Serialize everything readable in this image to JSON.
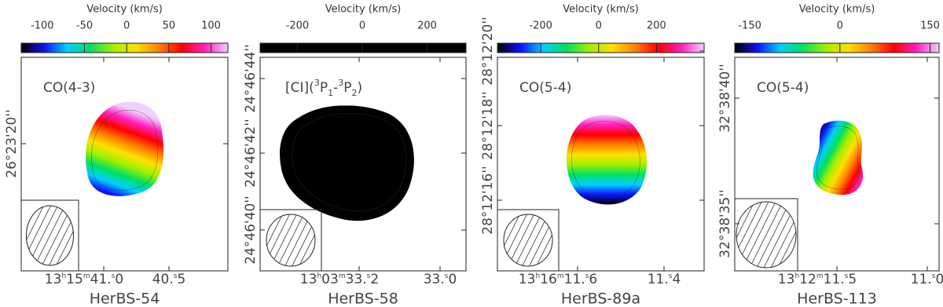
{
  "panels": [
    {
      "colorbar_title": "Velocity (km/s)",
      "clim": [
        -125,
        120
      ],
      "cticks": [
        -100,
        -50,
        0,
        50,
        100
      ],
      "reversed": false,
      "line_label": "CO(4-3)",
      "ra_labels": [
        "13h15m41.s0",
        "40.s5"
      ],
      "dec_labels": [
        "26°23'20''"
      ],
      "name": "HerBS-54"
    },
    {
      "colorbar_title": "Velocity (km/s)",
      "clim": [
        -315,
        320
      ],
      "cticks": [
        -200,
        0,
        200
      ],
      "reversed": true,
      "line_label": "[CI](3P1-3P2)",
      "ra_labels": [
        "13h03m33.s2",
        "33.s0"
      ],
      "dec_labels": [
        "24°46'44''",
        "24°46'42''",
        "24°46'40''"
      ],
      "name": "HerBS-58"
    },
    {
      "colorbar_title": "Velocity (km/s)",
      "clim": [
        -350,
        365
      ],
      "cticks": [
        -200,
        0,
        200
      ],
      "reversed": false,
      "line_label": "CO(5-4)",
      "ra_labels": [
        "13h16m11.s6",
        "11.s4"
      ],
      "dec_labels": [
        "28°12'20''",
        "28°12'18''",
        "28°12'16''"
      ],
      "name": "HerBS-89a"
    },
    {
      "colorbar_title": "Velocity (km/s)",
      "clim": [
        -175,
        165
      ],
      "cticks": [
        -150,
        0,
        150
      ],
      "reversed": false,
      "line_label": "CO(5-4)",
      "ra_labels": [
        "13h12m11.s5",
        "11.s0"
      ],
      "dec_labels": [
        "32°38'40''",
        "32°38'35''"
      ],
      "name": "HerBS-113"
    }
  ],
  "colormap": [
    "#000000",
    "#1010ff",
    "#00d0ff",
    "#00e060",
    "#a0f000",
    "#ffe000",
    "#ff8000",
    "#ff0000",
    "#ff20c0",
    "#f0d0ff"
  ]
}
